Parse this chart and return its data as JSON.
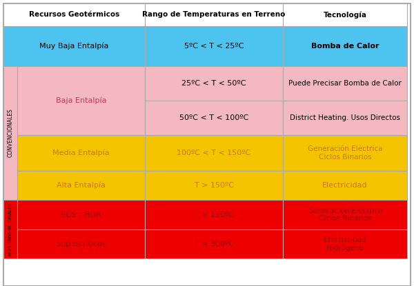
{
  "headers": [
    "Recursos Geotérmicos",
    "Rango de Temperaturas en Terreno",
    "Tecnología"
  ],
  "colors": {
    "header_bg": "#ffffff",
    "blue": "#4dc3ef",
    "pink": "#f4b8c1",
    "yellow": "#f5c400",
    "red": "#ee0000",
    "border": "#aaaaaa"
  },
  "text_colors": {
    "header": "#000000",
    "blue_cell": "#000000",
    "pink_dark": "#cc3355",
    "pink_black": "#000000",
    "yellow_cell": "#cc7700",
    "red_cell": "#990000",
    "side_conv": "#000000",
    "side_noconv": "#000000"
  },
  "cells": {
    "muy_baja": "Muy Baja Entalpía",
    "muy_baja_temp": "5ºC < T < 25ºC",
    "muy_baja_tech": "Bomba de Calor",
    "baja": "Baja Entalpía",
    "baja_temp1": "25ºC < T < 50ºC",
    "baja_tech1": "Puede Precisar Bomba de Calor",
    "baja_temp2": "50ºC < T < 100ºC",
    "baja_tech2": "District Heating. Usos Directos",
    "media": "Media Entalpía",
    "media_temp": "100ºC < T < 150ºC",
    "media_tech": "Generación Eléctrica\nCiclos Binarios",
    "alta": "Alta Entalpía",
    "alta_temp": "T > 150ºC",
    "alta_tech": "Electricidad",
    "egs": "EGS - HDR",
    "egs_temp": "T > 150ºC",
    "egs_tech": "Generación Eléctrica\nCiclos Binarios",
    "super": "Supercríticos",
    "super_temp": "T > 300ºC",
    "super_tech": "Electricidad\nHidrógeno",
    "conv_label": "CONVENCIONALES",
    "noconv_label": "NO CONVENCIONALES"
  },
  "figsize": [
    6.0,
    4.15
  ],
  "dpi": 100
}
